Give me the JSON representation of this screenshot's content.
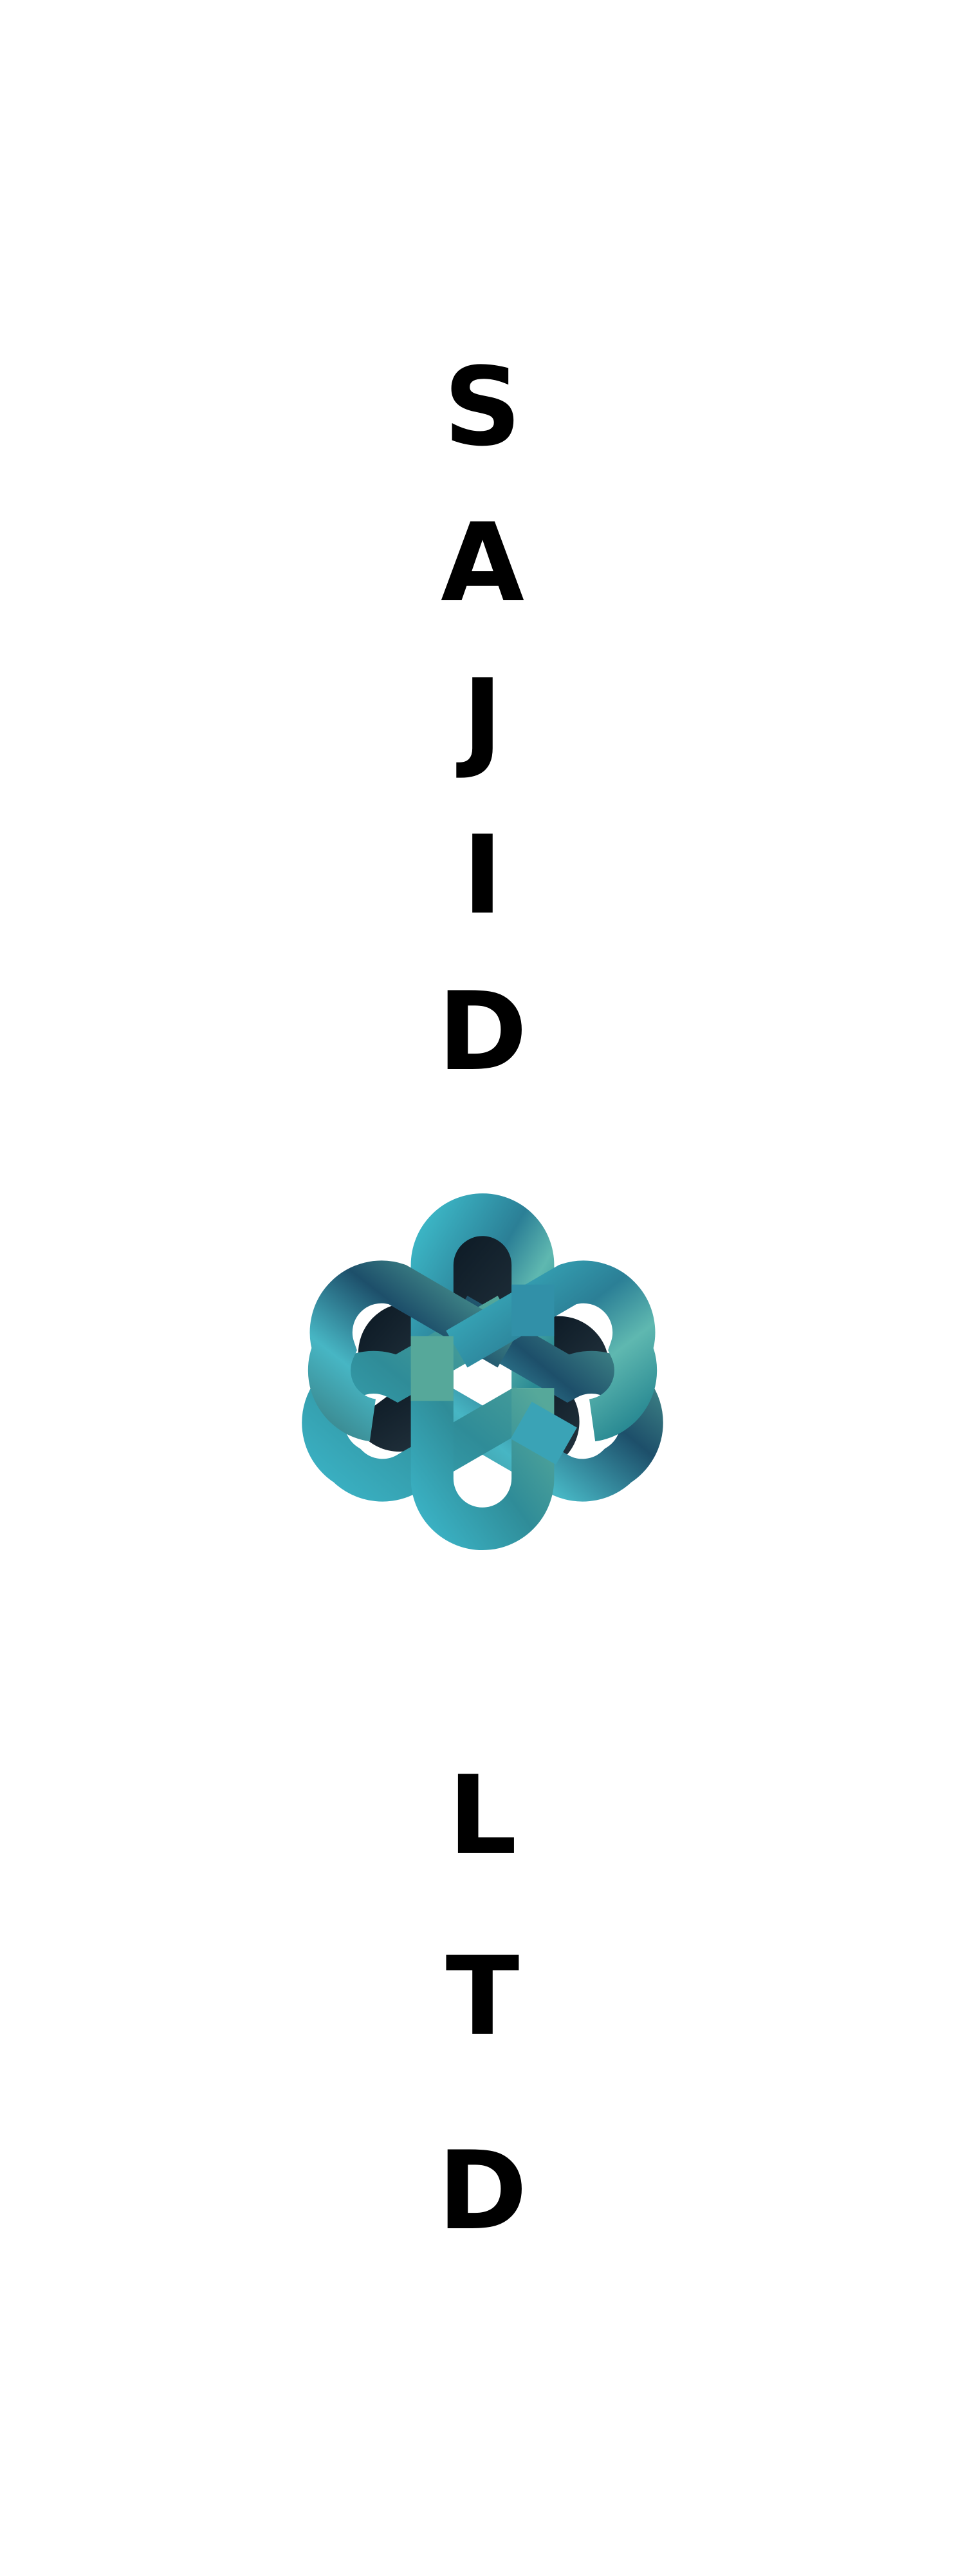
{
  "brand": {
    "name_letters": [
      "S",
      "A",
      "J",
      "I",
      "D"
    ],
    "suffix_letters": [
      "L",
      "T",
      "D"
    ],
    "logo": "interlaced-knot-logo"
  },
  "colors": {
    "text": "#000000",
    "background": "#ffffff",
    "teal_light": "#4bc0cc",
    "teal_mid": "#2e8fa3",
    "teal_green": "#56a89a",
    "navy_dark": "#0c1a26"
  }
}
